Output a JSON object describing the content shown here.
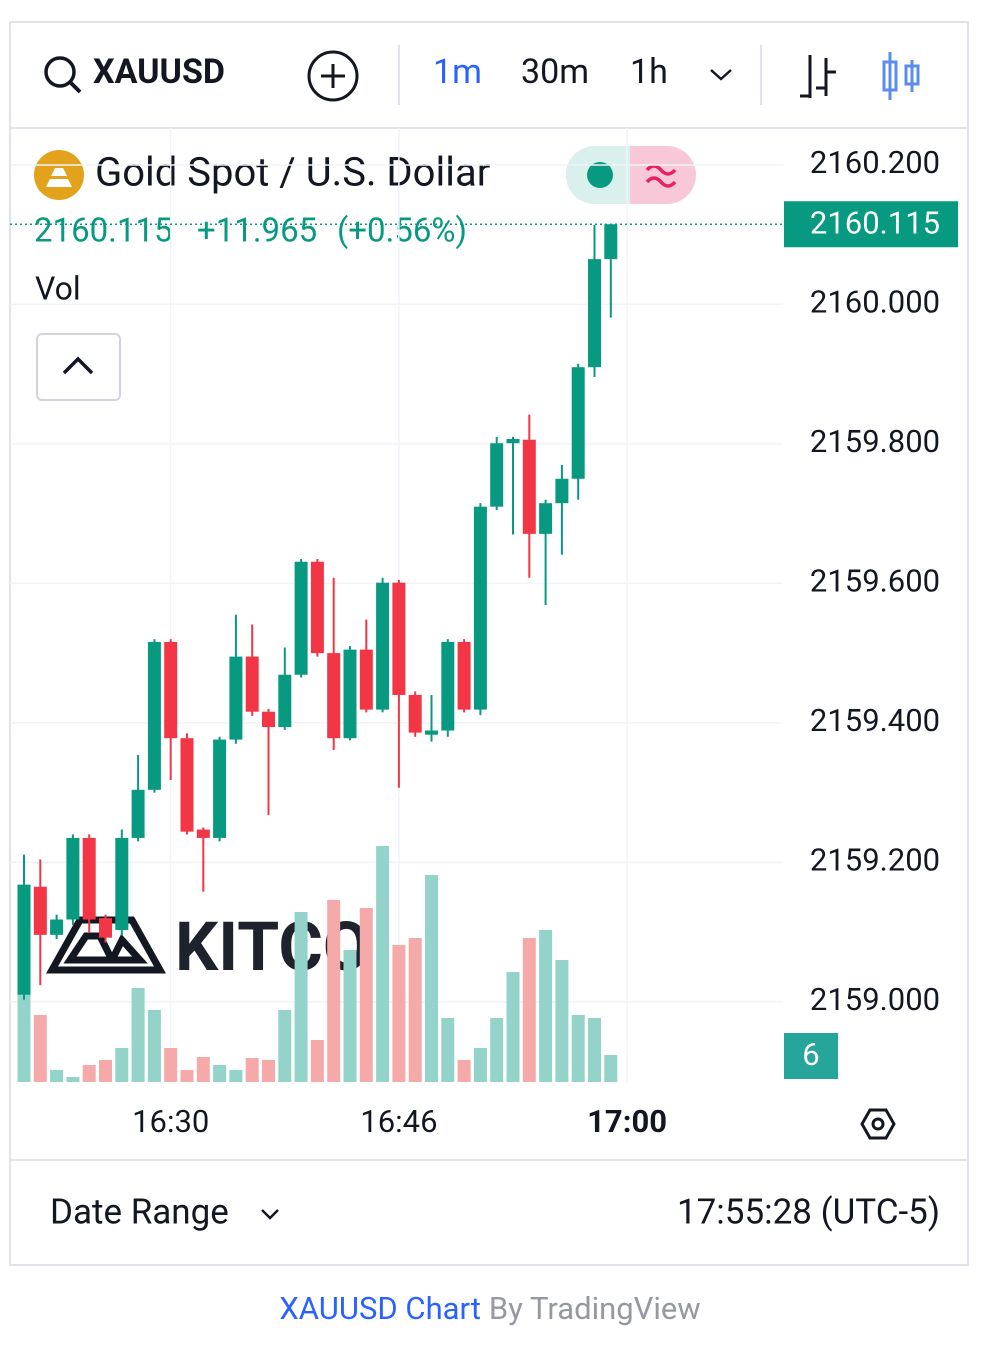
{
  "toolbar": {
    "symbol": "XAUUSD",
    "intervals": [
      "1m",
      "30m",
      "1h"
    ]
  },
  "header": {
    "title": "Gold Spot / U.S. Dollar",
    "price": "2160.115",
    "change": "+11.965",
    "percent": "(+0.56%)",
    "volume_label": "Vol"
  },
  "chart_data": {
    "type": "candlestick",
    "watermark": "KITCO",
    "categories": [
      null,
      null,
      null,
      null,
      null,
      null,
      null,
      null,
      null,
      "16:30",
      null,
      null,
      null,
      null,
      null,
      null,
      null,
      null,
      null,
      null,
      null,
      null,
      null,
      "16:46",
      null,
      null,
      null,
      null,
      null,
      null,
      null,
      null,
      null,
      null,
      null,
      null,
      null,
      "17:00"
    ],
    "open": [
      2159.01,
      2159.165,
      2159.096,
      2159.118,
      2159.235,
      2159.12,
      2159.103,
      2159.235,
      2159.304,
      2159.516,
      2159.378,
      2159.247,
      2159.235,
      2159.376,
      2159.495,
      2159.416,
      2159.394,
      2159.469,
      2159.631,
      2159.5,
      2159.378,
      2159.505,
      2159.419,
      2159.601,
      2159.44,
      2159.383,
      2159.389,
      2159.516,
      2159.419,
      2159.71,
      2159.801,
      2159.806,
      2159.671,
      2159.715,
      2159.75,
      2159.91,
      2160.065,
      null
    ],
    "high": [
      2159.211,
      2159.204,
      2159.125,
      2159.24,
      2159.24,
      2159.125,
      2159.247,
      2159.354,
      2159.52,
      2159.52,
      2159.385,
      2159.25,
      2159.38,
      2159.555,
      2159.541,
      2159.42,
      2159.508,
      2159.635,
      2159.635,
      2159.608,
      2159.51,
      2159.548,
      2159.608,
      2159.605,
      2159.445,
      2159.44,
      2159.52,
      2159.52,
      2159.715,
      2159.81,
      2159.81,
      2159.842,
      2159.72,
      2159.77,
      2159.915,
      2160.114,
      2160.115,
      null
    ],
    "low": [
      2159.003,
      2159.024,
      2159.09,
      2159.11,
      2159.1,
      2159.085,
      2159.095,
      2159.23,
      2159.3,
      2159.318,
      2159.24,
      2159.158,
      2159.23,
      2159.37,
      2159.41,
      2159.268,
      2159.39,
      2159.465,
      2159.495,
      2159.361,
      2159.375,
      2159.415,
      2159.415,
      2159.307,
      2159.38,
      2159.373,
      2159.38,
      2159.415,
      2159.411,
      2159.705,
      2159.67,
      2159.608,
      2159.569,
      2159.641,
      2159.72,
      2159.896,
      2159.981,
      null
    ],
    "close": [
      2159.168,
      2159.096,
      2159.118,
      2159.235,
      2159.118,
      2159.092,
      2159.235,
      2159.304,
      2159.516,
      2159.378,
      2159.244,
      2159.235,
      2159.376,
      2159.495,
      2159.416,
      2159.394,
      2159.469,
      2159.631,
      2159.5,
      2159.378,
      2159.505,
      2159.419,
      2159.601,
      2159.44,
      2159.386,
      2159.389,
      2159.516,
      2159.419,
      2159.71,
      2159.801,
      2159.807,
      2159.671,
      2159.715,
      2159.75,
      2159.91,
      2160.065,
      2160.115,
      null
    ],
    "volume": [
      87,
      67,
      12,
      5,
      17,
      22,
      34,
      94,
      72,
      34,
      12,
      25,
      17,
      12,
      24,
      22,
      72,
      170,
      42,
      182,
      132,
      174,
      236,
      137,
      144,
      207,
      64,
      22,
      34,
      64,
      110,
      144,
      152,
      122,
      67,
      64,
      27,
      null
    ],
    "up_color": "#089981",
    "down_color": "#f23645",
    "up_volume_color": "#93d3c9",
    "down_volume_color": "#f6a9a9",
    "ylim": [
      2158.885,
      2160.253
    ],
    "yticks": [
      {
        "value": 2159.0,
        "label": "2159.000"
      },
      {
        "value": 2159.2,
        "label": "2159.200"
      },
      {
        "value": 2159.4,
        "label": "2159.400"
      },
      {
        "value": 2159.6,
        "label": "2159.600"
      },
      {
        "value": 2159.8,
        "label": "2159.800"
      },
      {
        "value": 2160.0,
        "label": "2160.000"
      },
      {
        "value": 2160.2,
        "label": "2160.200"
      }
    ],
    "last_price": 2160.115,
    "badge": "6",
    "grid": true
  },
  "footer": {
    "range": "Date Range",
    "time": "17:55:28 (UTC-5)"
  },
  "credit": {
    "link": "XAUUSD Chart",
    "by": "By TradingView"
  }
}
